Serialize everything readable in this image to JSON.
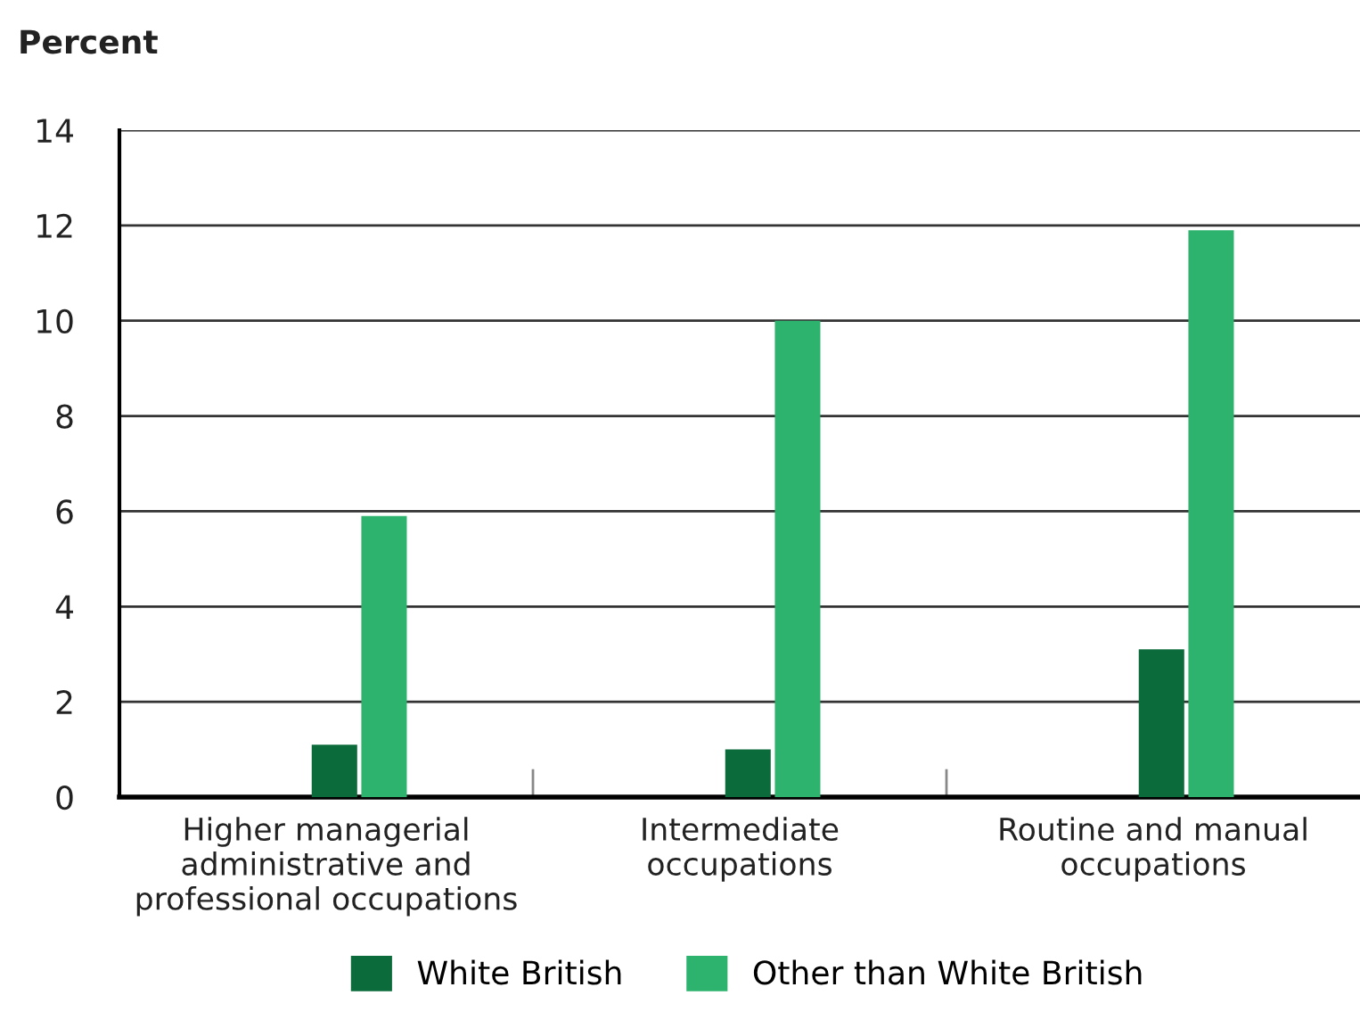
{
  "chart_data": {
    "type": "bar",
    "ylabel": "Percent",
    "categories": [
      "Higher managerial\nadministrative and\nprofessional occupations",
      "Intermediate\noccupations",
      "Routine and manual\noccupations"
    ],
    "series": [
      {
        "name": "White British",
        "color": "#0c6b3b",
        "values": [
          1.1,
          1.0,
          3.1
        ]
      },
      {
        "name": "Other than White British",
        "color": "#2db36e",
        "values": [
          5.9,
          10.0,
          11.9
        ]
      }
    ],
    "ylim": [
      0,
      14
    ],
    "yticks": [
      0,
      2,
      4,
      6,
      8,
      10,
      12,
      14
    ],
    "grid": "y",
    "legend": "bottom"
  }
}
